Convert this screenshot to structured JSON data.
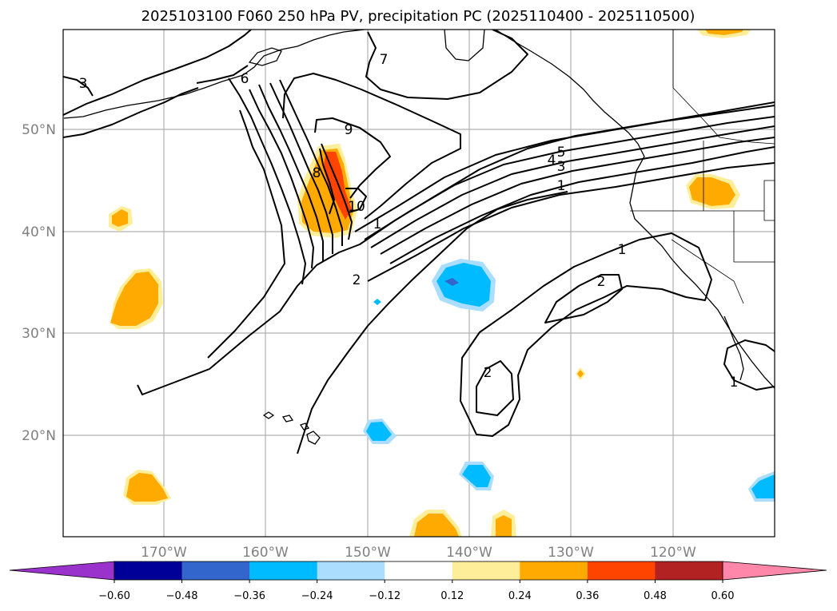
{
  "title": "2025103100 F060 250 hPa PV, precipitation PC (2025110400 - 2025110500)",
  "lon_labels": [
    "170°W",
    "160°W",
    "150°W",
    "140°W",
    "130°W",
    "120°W"
  ],
  "lat_labels": [
    "50°N",
    "40°N",
    "30°N",
    "20°N"
  ],
  "pv_contour_labels": [
    "1",
    "1",
    "1",
    "1",
    "2",
    "2",
    "2",
    "3",
    "3",
    "4",
    "5",
    "6",
    "7",
    "8",
    "9",
    "10"
  ],
  "colorbar": {
    "labels": [
      "−0.60",
      "−0.48",
      "−0.36",
      "−0.24",
      "−0.12",
      "0.12",
      "0.24",
      "0.36",
      "0.48",
      "0.60"
    ],
    "under_color": "#9933cc",
    "over_color": "#ff88aa",
    "colors": [
      "#000099",
      "#3366cc",
      "#00bbff",
      "#aaddff",
      "#ffffff",
      "#ffee99",
      "#ffaa00",
      "#ff4400",
      "#b22222"
    ]
  },
  "fill_colors": {
    "pos_light": "#ffee99",
    "pos_med": "#ffaa00",
    "pos_high": "#ff4400",
    "neg_light": "#aaddff",
    "neg_med": "#00bbff",
    "neg_deep": "#3366cc"
  }
}
